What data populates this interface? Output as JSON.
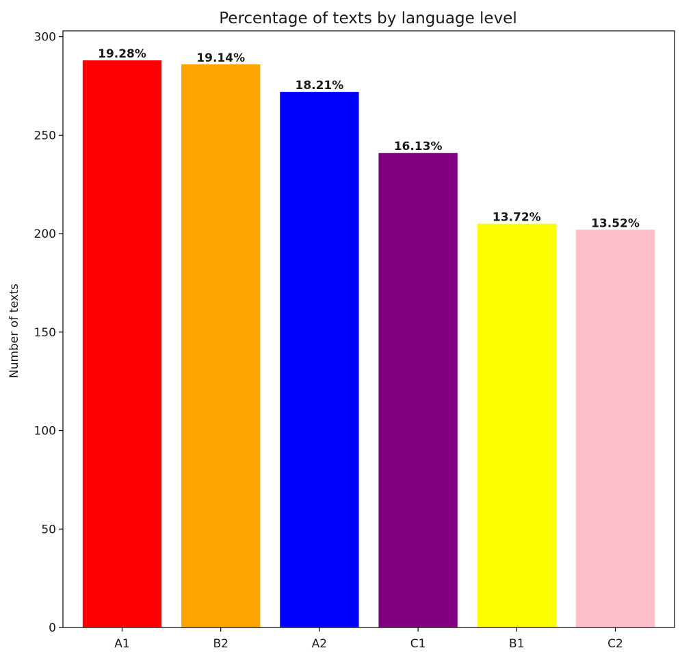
{
  "chart_data": {
    "type": "bar",
    "title": "Percentage of texts by language level",
    "xlabel": "",
    "ylabel": "Number of texts",
    "categories": [
      "A1",
      "B2",
      "A2",
      "C1",
      "B1",
      "C2"
    ],
    "values": [
      288,
      286,
      272,
      241,
      205,
      202
    ],
    "data_labels": [
      "19.28%",
      "19.14%",
      "18.21%",
      "16.13%",
      "13.72%",
      "13.52%"
    ],
    "colors": [
      "#ff0000",
      "#ffa500",
      "#0000ff",
      "#800080",
      "#ffff00",
      "#ffc0cb"
    ],
    "ylim": [
      0,
      303
    ],
    "yticks": [
      0,
      50,
      100,
      150,
      200,
      250,
      300
    ],
    "ytick_labels": [
      "0",
      "50",
      "100",
      "150",
      "200",
      "250",
      "300"
    ],
    "grid": false,
    "legend": "none"
  }
}
